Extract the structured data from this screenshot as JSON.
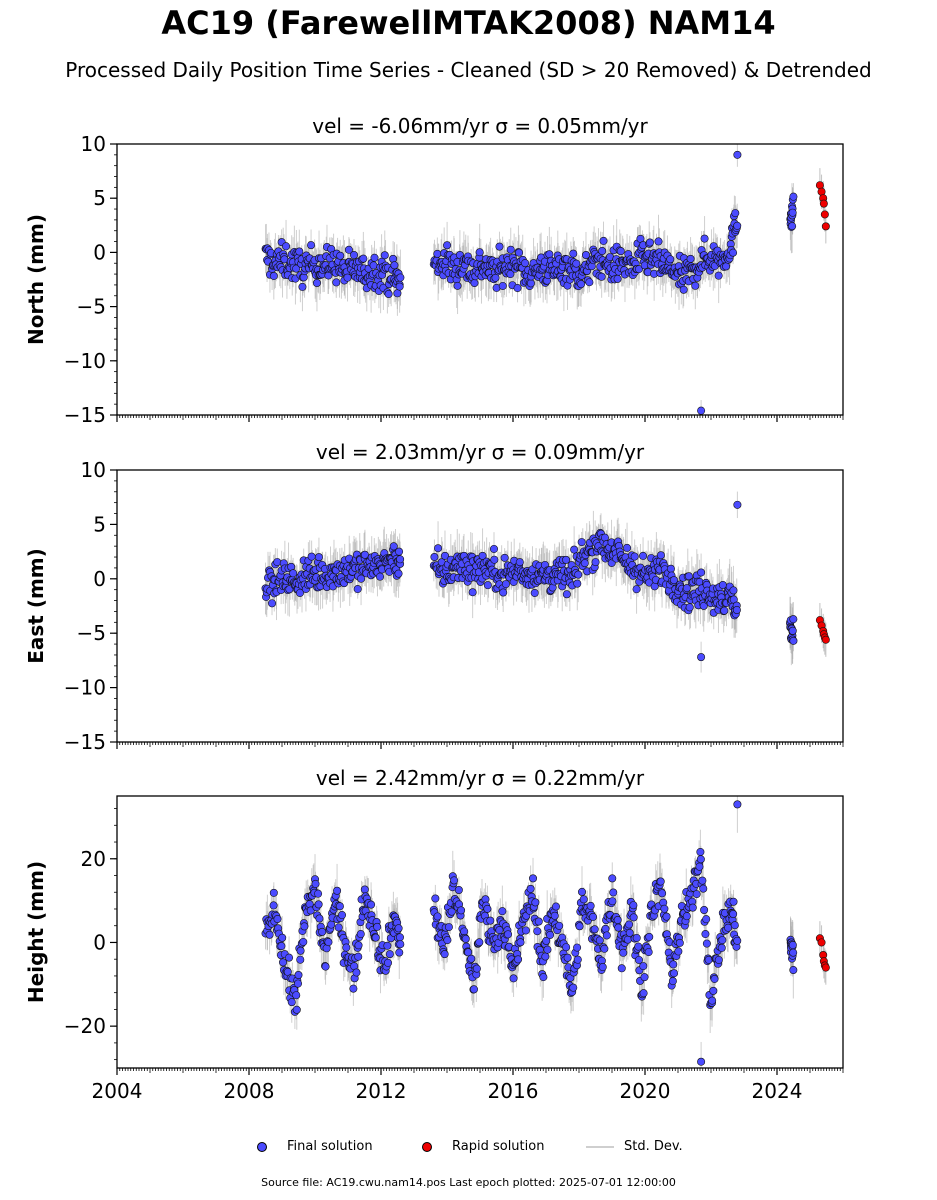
{
  "title": "AC19 (FarewellMTAK2008) NAM14",
  "subtitle": "Processed Daily Position Time Series - Cleaned (SD > 20 Removed) & Detrended",
  "legend": {
    "final": "Final solution",
    "rapid": "Rapid solution",
    "std": "Std. Dev."
  },
  "footer": "Source file: AC19.cwu.nam14.pos  Last epoch plotted: 2025-07-01 12:00:00",
  "colors": {
    "final": "#4b4bff",
    "rapid": "#ee0000",
    "std": "#a8a8a8"
  },
  "chart_data": [
    {
      "type": "scatter",
      "title": "vel = -6.06mm/yr   σ = 0.05mm/yr",
      "ylabel": "North (mm)",
      "xlim": [
        2004,
        2026
      ],
      "ylim": [
        -15,
        10
      ],
      "yticks": [
        -15,
        -10,
        -5,
        0,
        5,
        10
      ],
      "ytick_labels": [
        "−15",
        "−10",
        "−5",
        "0",
        "5",
        "10"
      ],
      "grid": false,
      "series": [
        {
          "name": "Final solution",
          "x": [
            2008.5,
            2008.8,
            2009.1,
            2009.4,
            2009.7,
            2010.0,
            2010.3,
            2010.6,
            2010.9,
            2011.2,
            2011.5,
            2011.8,
            2012.1,
            2012.4,
            2012.6,
            2013.6,
            2013.9,
            2014.2,
            2014.5,
            2014.8,
            2015.1,
            2015.4,
            2015.7,
            2016.0,
            2016.3,
            2016.6,
            2016.9,
            2017.2,
            2017.5,
            2017.8,
            2018.1,
            2018.4,
            2018.7,
            2019.0,
            2019.3,
            2019.6,
            2019.9,
            2020.2,
            2020.5,
            2020.8,
            2021.1,
            2021.4,
            2021.7,
            2022.0,
            2022.3,
            2022.6,
            2022.8,
            2024.4,
            2024.5
          ],
          "y": [
            -0.5,
            -1.0,
            -0.8,
            -1.2,
            -1.5,
            -0.9,
            -1.3,
            -1.0,
            -1.8,
            -1.4,
            -2.0,
            -1.6,
            -1.9,
            -2.3,
            -2.8,
            -1.2,
            -0.8,
            -1.5,
            -1.0,
            -1.7,
            -1.1,
            -1.9,
            -1.4,
            -1.0,
            -1.6,
            -2.0,
            -1.3,
            -1.8,
            -1.2,
            -1.5,
            -2.2,
            -1.1,
            -0.6,
            -1.4,
            -0.9,
            -1.3,
            -0.5,
            -0.8,
            -1.0,
            -1.6,
            -2.4,
            -1.8,
            -0.9,
            -0.4,
            -0.7,
            0.6,
            3.0,
            3.6,
            4.0
          ],
          "y_min": -14.6,
          "y_max": 9.0
        },
        {
          "name": "Rapid solution",
          "x": [
            2025.3,
            2025.35,
            2025.4,
            2025.42,
            2025.45,
            2025.48
          ],
          "y": [
            6.2,
            5.6,
            5.0,
            4.5,
            3.5,
            2.4
          ]
        }
      ]
    },
    {
      "type": "scatter",
      "title": "vel = 2.03mm/yr   σ = 0.09mm/yr",
      "ylabel": "East (mm)",
      "xlim": [
        2004,
        2026
      ],
      "ylim": [
        -15,
        10
      ],
      "yticks": [
        -15,
        -10,
        -5,
        0,
        5,
        10
      ],
      "ytick_labels": [
        "−15",
        "−10",
        "−5",
        "0",
        "5",
        "10"
      ],
      "grid": false,
      "series": [
        {
          "name": "Final solution",
          "x": [
            2008.5,
            2008.8,
            2009.1,
            2009.4,
            2009.7,
            2010.0,
            2010.3,
            2010.6,
            2010.9,
            2011.2,
            2011.5,
            2011.8,
            2012.1,
            2012.4,
            2012.6,
            2013.6,
            2013.9,
            2014.2,
            2014.5,
            2014.8,
            2015.1,
            2015.4,
            2015.7,
            2016.0,
            2016.3,
            2016.6,
            2016.9,
            2017.2,
            2017.5,
            2017.8,
            2018.1,
            2018.4,
            2018.7,
            2019.0,
            2019.3,
            2019.6,
            2019.9,
            2020.2,
            2020.5,
            2020.8,
            2021.1,
            2021.4,
            2021.7,
            2022.0,
            2022.3,
            2022.6,
            2022.8,
            2024.4,
            2024.5
          ],
          "y": [
            -0.4,
            -0.2,
            0.0,
            -0.3,
            0.2,
            0.3,
            0.5,
            0.6,
            0.8,
            1.0,
            1.1,
            1.3,
            1.5,
            1.7,
            2.0,
            0.9,
            0.6,
            1.0,
            1.2,
            0.8,
            1.1,
            0.7,
            0.4,
            0.6,
            0.8,
            0.3,
            0.5,
            0.2,
            0.4,
            0.1,
            2.0,
            2.8,
            3.4,
            2.6,
            1.8,
            1.2,
            0.5,
            0.2,
            0.9,
            0.0,
            -0.8,
            -1.2,
            -1.0,
            -1.5,
            -1.6,
            -2.0,
            -2.6,
            -4.8,
            -5.2
          ],
          "y_min": -7.2,
          "y_max": 6.8
        },
        {
          "name": "Rapid solution",
          "x": [
            2025.3,
            2025.35,
            2025.4,
            2025.42,
            2025.45,
            2025.48
          ],
          "y": [
            -3.8,
            -4.3,
            -4.8,
            -5.1,
            -5.4,
            -5.6
          ]
        }
      ]
    },
    {
      "type": "scatter",
      "title": "vel = 2.42mm/yr   σ = 0.22mm/yr",
      "ylabel": "Height (mm)",
      "xlim": [
        2004,
        2026
      ],
      "ylim": [
        -30,
        35
      ],
      "yticks": [
        -20,
        0,
        20
      ],
      "ytick_labels": [
        "−20",
        "0",
        "20"
      ],
      "xticks": [
        2004,
        2008,
        2012,
        2016,
        2020,
        2024
      ],
      "xtick_labels": [
        "2004",
        "2008",
        "2012",
        "2016",
        "2020",
        "2024"
      ],
      "grid": false,
      "series": [
        {
          "name": "Final solution",
          "x": [
            2008.5,
            2008.8,
            2009.1,
            2009.4,
            2009.7,
            2010.0,
            2010.3,
            2010.6,
            2010.9,
            2011.2,
            2011.5,
            2011.8,
            2012.1,
            2012.4,
            2012.6,
            2013.6,
            2013.9,
            2014.2,
            2014.5,
            2014.8,
            2015.1,
            2015.4,
            2015.7,
            2016.0,
            2016.3,
            2016.6,
            2016.9,
            2017.2,
            2017.5,
            2017.8,
            2018.1,
            2018.4,
            2018.7,
            2019.0,
            2019.3,
            2019.6,
            2019.9,
            2020.2,
            2020.5,
            2020.8,
            2021.1,
            2021.4,
            2021.7,
            2022.0,
            2022.3,
            2022.6,
            2022.8,
            2024.4,
            2024.5
          ],
          "y": [
            2,
            8,
            -6,
            -14,
            6,
            14,
            -4,
            10,
            0,
            -8,
            12,
            4,
            -6,
            6,
            0,
            8,
            -2,
            14,
            2,
            -10,
            10,
            0,
            6,
            -8,
            4,
            12,
            -6,
            8,
            0,
            -12,
            10,
            4,
            -4,
            12,
            -2,
            8,
            -10,
            6,
            14,
            -8,
            4,
            10,
            20,
            -14,
            2,
            8,
            0,
            0,
            -4
          ],
          "y_min": -28.5,
          "y_max": 33.0
        },
        {
          "name": "Rapid solution",
          "x": [
            2025.3,
            2025.35,
            2025.4,
            2025.42,
            2025.45,
            2025.48
          ],
          "y": [
            1,
            0,
            -3,
            -4.5,
            -5.5,
            -6
          ]
        }
      ]
    }
  ]
}
